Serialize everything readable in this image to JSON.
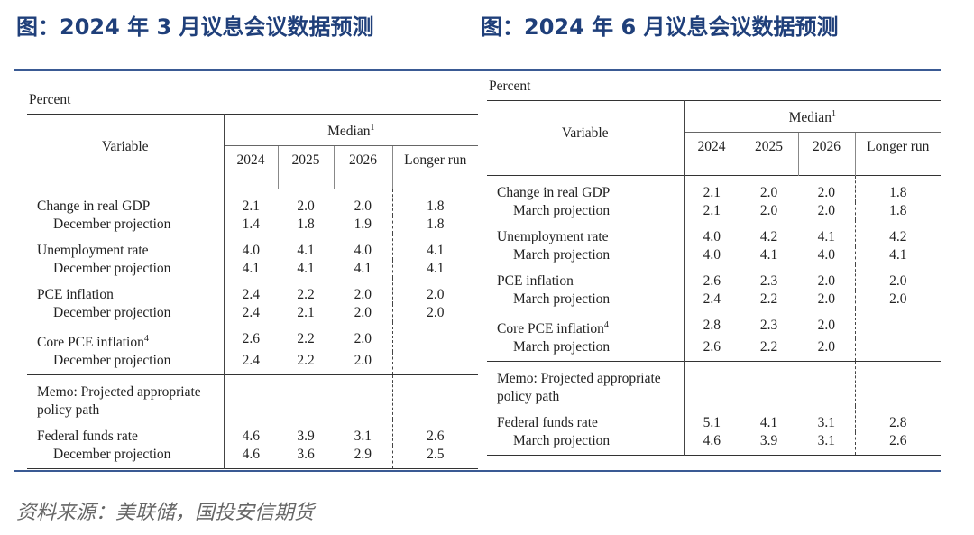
{
  "left": {
    "title": "图：2024 年 3 月议息会议数据预测",
    "unit": "Percent",
    "header": {
      "variable": "Variable",
      "median": "Median",
      "median_sup": "1",
      "columns": [
        "2024",
        "2025",
        "2026",
        "Longer run"
      ]
    },
    "sections": [
      {
        "groups": [
          {
            "rows": [
              {
                "label": "Change in real GDP",
                "values": [
                  "2.1",
                  "2.0",
                  "2.0",
                  "1.8"
                ]
              },
              {
                "label": "December projection",
                "values": [
                  "1.4",
                  "1.8",
                  "1.9",
                  "1.8"
                ]
              }
            ]
          },
          {
            "rows": [
              {
                "label": "Unemployment rate",
                "values": [
                  "4.0",
                  "4.1",
                  "4.0",
                  "4.1"
                ]
              },
              {
                "label": "December projection",
                "values": [
                  "4.1",
                  "4.1",
                  "4.1",
                  "4.1"
                ]
              }
            ]
          },
          {
            "rows": [
              {
                "label": "PCE inflation",
                "values": [
                  "2.4",
                  "2.2",
                  "2.0",
                  "2.0"
                ]
              },
              {
                "label": "December projection",
                "values": [
                  "2.4",
                  "2.1",
                  "2.0",
                  "2.0"
                ]
              }
            ]
          },
          {
            "rows": [
              {
                "label": "Core PCE inflation",
                "sup": "4",
                "values": [
                  "2.6",
                  "2.2",
                  "2.0"
                ]
              },
              {
                "label": "December projection",
                "values": [
                  "2.4",
                  "2.2",
                  "2.0"
                ]
              }
            ]
          }
        ]
      },
      {
        "groups": [
          {
            "rows": [
              {
                "label": "Memo: Projected appropriate policy path",
                "values": []
              }
            ]
          },
          {
            "rows": [
              {
                "label": "Federal funds rate",
                "values": [
                  "4.6",
                  "3.9",
                  "3.1",
                  "2.6"
                ]
              },
              {
                "label": "December projection",
                "values": [
                  "4.6",
                  "3.6",
                  "2.9",
                  "2.5"
                ]
              }
            ]
          }
        ]
      }
    ]
  },
  "right": {
    "title": "图：2024 年 6 月议息会议数据预测",
    "unit": "Percent",
    "header": {
      "variable": "Variable",
      "median": "Median",
      "median_sup": "1",
      "columns": [
        "2024",
        "2025",
        "2026",
        "Longer run"
      ]
    },
    "sections": [
      {
        "groups": [
          {
            "rows": [
              {
                "label": "Change in real GDP",
                "values": [
                  "2.1",
                  "2.0",
                  "2.0",
                  "1.8"
                ]
              },
              {
                "label": "March projection",
                "values": [
                  "2.1",
                  "2.0",
                  "2.0",
                  "1.8"
                ]
              }
            ]
          },
          {
            "rows": [
              {
                "label": "Unemployment rate",
                "values": [
                  "4.0",
                  "4.2",
                  "4.1",
                  "4.2"
                ]
              },
              {
                "label": "March projection",
                "values": [
                  "4.0",
                  "4.1",
                  "4.0",
                  "4.1"
                ]
              }
            ]
          },
          {
            "rows": [
              {
                "label": "PCE inflation",
                "values": [
                  "2.6",
                  "2.3",
                  "2.0",
                  "2.0"
                ]
              },
              {
                "label": "March projection",
                "values": [
                  "2.4",
                  "2.2",
                  "2.0",
                  "2.0"
                ]
              }
            ]
          },
          {
            "rows": [
              {
                "label": "Core PCE inflation",
                "sup": "4",
                "values": [
                  "2.8",
                  "2.3",
                  "2.0"
                ]
              },
              {
                "label": "March projection",
                "values": [
                  "2.6",
                  "2.2",
                  "2.0"
                ]
              }
            ]
          }
        ]
      },
      {
        "groups": [
          {
            "rows": [
              {
                "label": "Memo: Projected appropriate policy path",
                "values": []
              }
            ]
          },
          {
            "rows": [
              {
                "label": "Federal funds rate",
                "values": [
                  "5.1",
                  "4.1",
                  "3.1",
                  "2.8"
                ]
              },
              {
                "label": "March projection",
                "values": [
                  "4.6",
                  "3.9",
                  "3.1",
                  "2.6"
                ]
              }
            ]
          }
        ]
      }
    ]
  },
  "source": "资料来源：美联储，国投安信期货"
}
